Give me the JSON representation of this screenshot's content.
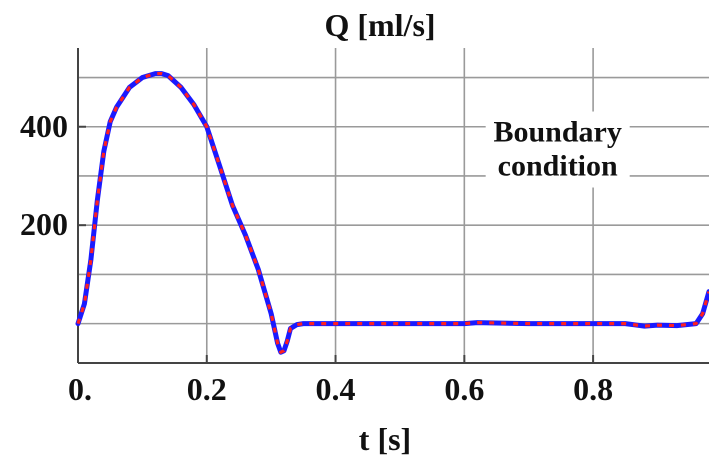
{
  "chart_data": {
    "type": "line",
    "title": "Q [ml/s]",
    "xlabel": "t [s]",
    "ylabel": "",
    "xlim": [
      0,
      0.98
    ],
    "ylim": [
      -80,
      560
    ],
    "grid": true,
    "x_ticks": [
      {
        "value": 0.0,
        "label": "0."
      },
      {
        "value": 0.2,
        "label": "0.2"
      },
      {
        "value": 0.4,
        "label": "0.4"
      },
      {
        "value": 0.6,
        "label": "0.6"
      },
      {
        "value": 0.8,
        "label": "0.8"
      }
    ],
    "x_gridlines": [
      0.0,
      0.2,
      0.4,
      0.6,
      0.8
    ],
    "y_ticks": [
      {
        "value": 200,
        "label": "200"
      },
      {
        "value": 400,
        "label": "400"
      }
    ],
    "y_gridlines": [
      0,
      100,
      200,
      300,
      400,
      500
    ],
    "annotation": {
      "lines": [
        "Boundary",
        "condition"
      ],
      "x": 0.745,
      "y": 370
    },
    "series": [
      {
        "color": "#1a1aff",
        "line_style": "solid",
        "x": [
          0.0,
          0.01,
          0.02,
          0.03,
          0.04,
          0.05,
          0.06,
          0.08,
          0.1,
          0.12,
          0.13,
          0.14,
          0.16,
          0.18,
          0.2,
          0.22,
          0.24,
          0.26,
          0.28,
          0.3,
          0.31,
          0.315,
          0.32,
          0.325,
          0.33,
          0.34,
          0.35,
          0.4,
          0.5,
          0.6,
          0.62,
          0.7,
          0.8,
          0.85,
          0.88,
          0.9,
          0.93,
          0.96,
          0.97,
          0.98
        ],
        "y": [
          0,
          40,
          130,
          250,
          350,
          410,
          440,
          480,
          500,
          508,
          508,
          504,
          480,
          445,
          400,
          320,
          240,
          180,
          110,
          20,
          -40,
          -58,
          -55,
          -35,
          -10,
          -2,
          0,
          0,
          0,
          0,
          2,
          0,
          0,
          0,
          -5,
          -3,
          -4,
          0,
          20,
          65
        ]
      },
      {
        "color": "#ff2020",
        "line_style": "dashed",
        "x": [
          0.0,
          0.01,
          0.02,
          0.03,
          0.04,
          0.05,
          0.06,
          0.08,
          0.1,
          0.12,
          0.13,
          0.14,
          0.16,
          0.18,
          0.2,
          0.22,
          0.24,
          0.26,
          0.28,
          0.3,
          0.31,
          0.315,
          0.32,
          0.325,
          0.33,
          0.34,
          0.35,
          0.4,
          0.5,
          0.6,
          0.62,
          0.7,
          0.8,
          0.85,
          0.88,
          0.9,
          0.93,
          0.96,
          0.97,
          0.98
        ],
        "y": [
          0,
          40,
          130,
          250,
          350,
          410,
          440,
          480,
          500,
          508,
          508,
          504,
          480,
          445,
          400,
          320,
          240,
          180,
          110,
          20,
          -40,
          -58,
          -55,
          -35,
          -10,
          -2,
          0,
          0,
          0,
          0,
          2,
          0,
          0,
          0,
          -5,
          -3,
          -4,
          0,
          20,
          65
        ]
      }
    ]
  }
}
